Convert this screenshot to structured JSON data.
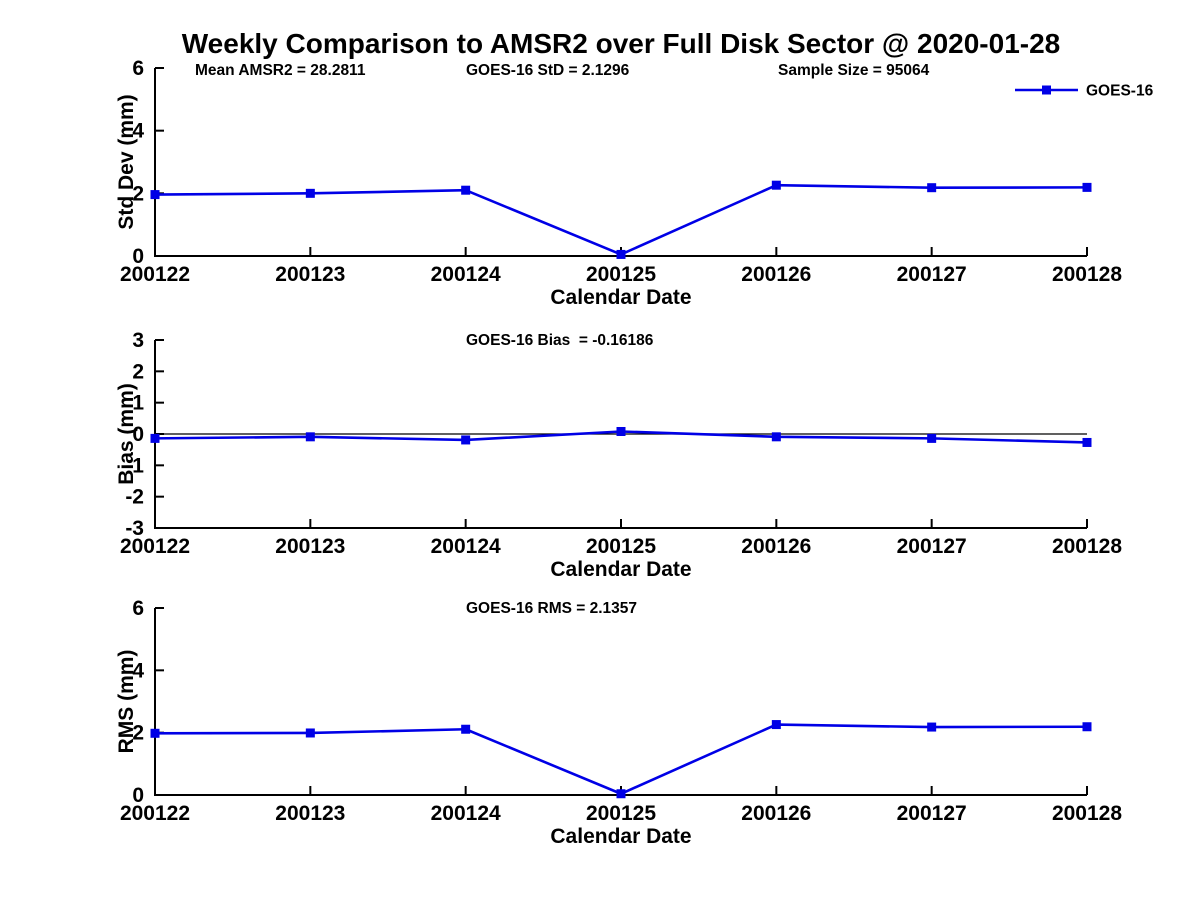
{
  "title": "Weekly Comparison to AMSR2 over Full Disk Sector @ 2020-01-28",
  "colors": {
    "series": "#0000e6",
    "axis": "#000000",
    "text": "#000000",
    "background": "#ffffff",
    "zero_line": "#000000"
  },
  "legend": {
    "label": "GOES-16",
    "position": "top-right"
  },
  "stats": {
    "mean_amsr2": 28.2811,
    "goes16_std": 2.1296,
    "sample_size": 95064,
    "goes16_bias": -0.16186,
    "goes16_rms": 2.1357
  },
  "chart_data": [
    {
      "type": "line",
      "name": "std-dev-panel",
      "categories": [
        "200122",
        "200123",
        "200124",
        "200125",
        "200126",
        "200127",
        "200128"
      ],
      "series": [
        {
          "name": "GOES-16",
          "values": [
            1.96,
            2.0,
            2.1,
            0.05,
            2.26,
            2.18,
            2.19
          ]
        }
      ],
      "xlabel": "Calendar Date",
      "ylabel": "Std Dev (mm)",
      "ylim": [
        0,
        6
      ],
      "yticks": [
        0,
        2,
        4,
        6
      ],
      "grid": false,
      "zero_line": false,
      "legend": true,
      "annotations": [
        "Mean AMSR2 = 28.2811",
        "GOES-16 StD = 2.1296",
        "Sample Size = 95064"
      ]
    },
    {
      "type": "line",
      "name": "bias-panel",
      "categories": [
        "200122",
        "200123",
        "200124",
        "200125",
        "200126",
        "200127",
        "200128"
      ],
      "series": [
        {
          "name": "GOES-16",
          "values": [
            -0.14,
            -0.09,
            -0.19,
            0.08,
            -0.09,
            -0.14,
            -0.27
          ]
        }
      ],
      "xlabel": "Calendar Date",
      "ylabel": "Bias (mm)",
      "ylim": [
        -3,
        3
      ],
      "yticks": [
        -3,
        -2,
        -1,
        0,
        1,
        2,
        3
      ],
      "grid": false,
      "zero_line": true,
      "legend": false,
      "annotations": [
        "GOES-16 Bias  = -0.16186"
      ]
    },
    {
      "type": "line",
      "name": "rms-panel",
      "categories": [
        "200122",
        "200123",
        "200124",
        "200125",
        "200126",
        "200127",
        "200128"
      ],
      "series": [
        {
          "name": "GOES-16",
          "values": [
            1.98,
            1.99,
            2.11,
            0.04,
            2.26,
            2.18,
            2.19
          ]
        }
      ],
      "xlabel": "Calendar Date",
      "ylabel": "RMS (mm)",
      "ylim": [
        0,
        6
      ],
      "yticks": [
        0,
        2,
        4,
        6
      ],
      "grid": false,
      "zero_line": false,
      "legend": false,
      "annotations": [
        "GOES-16 RMS = 2.1357"
      ]
    }
  ]
}
